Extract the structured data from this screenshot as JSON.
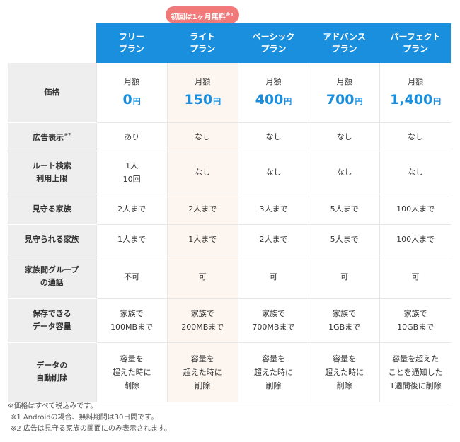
{
  "badge": {
    "text": "初回は1ヶ月無料",
    "note": "※1"
  },
  "plans": [
    {
      "line1": "フリー",
      "line2": "プラン"
    },
    {
      "line1": "ライト",
      "line2": "プラン"
    },
    {
      "line1": "ベーシック",
      "line2": "プラン"
    },
    {
      "line1": "アドバンス",
      "line2": "プラン"
    },
    {
      "line1": "パーフェクト",
      "line2": "プラン"
    }
  ],
  "rows": {
    "price": {
      "label": "価格",
      "monthly": "月額",
      "unit": "円",
      "values": [
        "0",
        "150",
        "400",
        "700",
        "1,400"
      ]
    },
    "ads": {
      "label": "広告表示",
      "note": "※2",
      "values": [
        "あり",
        "なし",
        "なし",
        "なし",
        "なし"
      ]
    },
    "route": {
      "label1": "ルート検索",
      "label2": "利用上限",
      "values": [
        {
          "l1": "1人",
          "l2": "10回"
        },
        {
          "l1": "なし",
          "l2": ""
        },
        {
          "l1": "なし",
          "l2": ""
        },
        {
          "l1": "なし",
          "l2": ""
        },
        {
          "l1": "なし",
          "l2": ""
        }
      ]
    },
    "watch": {
      "label": "見守る家族",
      "values": [
        "2人まで",
        "2人まで",
        "3人まで",
        "5人まで",
        "100人まで"
      ]
    },
    "watched": {
      "label": "見守られる家族",
      "values": [
        "1人まで",
        "1人まで",
        "2人まで",
        "5人まで",
        "100人まで"
      ]
    },
    "group": {
      "label1": "家族間グループ",
      "label2": "の通話",
      "values": [
        "不可",
        "可",
        "可",
        "可",
        "可"
      ]
    },
    "storage": {
      "label1": "保存できる",
      "label2": "データ容量",
      "values": [
        {
          "l1": "家族で",
          "l2": "100MBまで"
        },
        {
          "l1": "家族で",
          "l2": "200MBまで"
        },
        {
          "l1": "家族で",
          "l2": "700MBまで"
        },
        {
          "l1": "家族で",
          "l2": "1GBまで"
        },
        {
          "l1": "家族で",
          "l2": "10GBまで"
        }
      ]
    },
    "delete": {
      "label1": "データの",
      "label2": "自動削除",
      "values": [
        {
          "l1": "容量を",
          "l2": "超えた時に",
          "l3": "削除"
        },
        {
          "l1": "容量を",
          "l2": "超えた時に",
          "l3": "削除"
        },
        {
          "l1": "容量を",
          "l2": "超えた時に",
          "l3": "削除"
        },
        {
          "l1": "容量を",
          "l2": "超えた時に",
          "l3": "削除"
        },
        {
          "l1": "容量を超えた",
          "l2": "ことを通知した",
          "l3": "1週間後に削除"
        }
      ]
    }
  },
  "notes": [
    "※価格はすべて税込みです。",
    "※1 Androidの場合、無料期間は30日間です。",
    "※2 広告は見守る家族の画面にのみ表示されます。"
  ],
  "colors": {
    "header_blue": "#1a8fde",
    "badge_pink": "#f07a7a",
    "lite_column": "#fdf5ef",
    "row_header_gray": "#eeeeee"
  }
}
